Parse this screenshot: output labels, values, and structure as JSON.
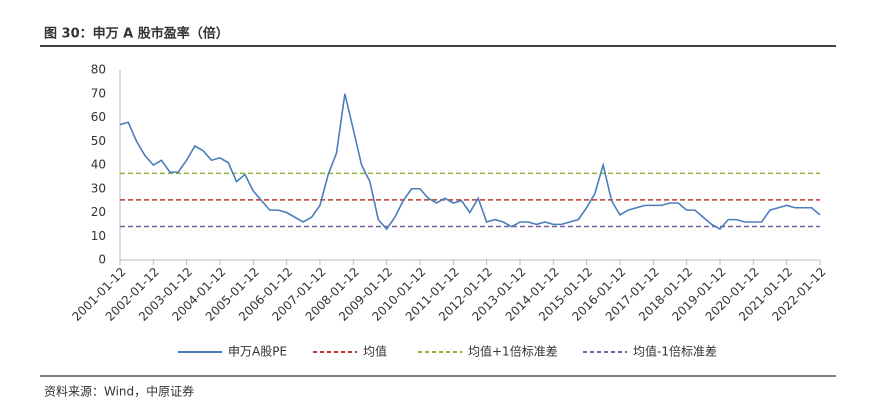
{
  "header": {
    "title": "图 30：申万 A 股市盈率（倍）"
  },
  "source": "资料来源：Wind，中原证券",
  "chart_data": {
    "type": "line",
    "x": [
      "2001-01-12",
      "2001-04-12",
      "2001-07-12",
      "2001-10-12",
      "2002-01-12",
      "2002-04-12",
      "2002-07-12",
      "2002-10-12",
      "2003-01-12",
      "2003-04-12",
      "2003-07-12",
      "2003-10-12",
      "2004-01-12",
      "2004-04-12",
      "2004-07-12",
      "2004-10-12",
      "2005-01-12",
      "2005-04-12",
      "2005-07-12",
      "2005-10-12",
      "2006-01-12",
      "2006-04-12",
      "2006-07-12",
      "2006-10-12",
      "2007-01-12",
      "2007-04-12",
      "2007-07-12",
      "2007-10-12",
      "2008-01-12",
      "2008-04-12",
      "2008-07-12",
      "2008-10-12",
      "2009-01-12",
      "2009-04-12",
      "2009-07-12",
      "2009-10-12",
      "2010-01-12",
      "2010-04-12",
      "2010-07-12",
      "2010-10-12",
      "2011-01-12",
      "2011-04-12",
      "2011-07-12",
      "2011-10-12",
      "2012-01-12",
      "2012-04-12",
      "2012-07-12",
      "2012-10-12",
      "2013-01-12",
      "2013-04-12",
      "2013-07-12",
      "2013-10-12",
      "2014-01-12",
      "2014-04-12",
      "2014-07-12",
      "2014-10-12",
      "2015-01-12",
      "2015-04-12",
      "2015-07-12",
      "2015-10-12",
      "2016-01-12",
      "2016-04-12",
      "2016-07-12",
      "2016-10-12",
      "2017-01-12",
      "2017-04-12",
      "2017-07-12",
      "2017-10-12",
      "2018-01-12",
      "2018-04-12",
      "2018-07-12",
      "2018-10-12",
      "2019-01-12",
      "2019-04-12",
      "2019-07-12",
      "2019-10-12",
      "2020-01-12",
      "2020-04-12",
      "2020-07-12",
      "2020-10-12",
      "2021-01-12",
      "2021-04-12",
      "2021-07-12",
      "2021-10-12",
      "2022-01-12"
    ],
    "series": [
      {
        "name": "申万A股PE",
        "color": "#4a7ebb",
        "values": [
          57,
          58,
          50,
          44,
          40,
          42,
          37,
          37,
          42,
          48,
          46,
          42,
          43,
          41,
          33,
          36,
          29,
          25,
          21,
          21,
          20,
          18,
          16,
          18,
          23,
          36,
          45,
          70,
          55,
          40,
          33,
          17,
          13,
          18,
          25,
          30,
          30,
          26,
          24,
          26,
          24,
          25,
          20,
          26,
          16,
          17,
          16,
          14,
          16,
          16,
          15,
          16,
          15,
          15,
          16,
          17,
          22,
          28,
          40,
          25,
          19,
          21,
          22,
          23,
          23,
          23,
          24,
          24,
          21,
          21,
          18,
          15,
          13,
          17,
          17,
          16,
          16,
          16,
          21,
          22,
          23,
          22,
          22,
          22,
          19
        ]
      }
    ],
    "reference_lines": [
      {
        "name": "均值",
        "value": 25.3,
        "color": "#c0392b"
      },
      {
        "name": "均值+1倍标准差",
        "value": 36.5,
        "color": "#8db33a"
      },
      {
        "name": "均值-1倍标准差",
        "value": 14.1,
        "color": "#7a5fa0"
      }
    ],
    "xlim": [
      "2001-01-12",
      "2022-01-12"
    ],
    "xticks": [
      "2001-01-12",
      "2002-01-12",
      "2003-01-12",
      "2004-01-12",
      "2005-01-12",
      "2006-01-12",
      "2007-01-12",
      "2008-01-12",
      "2009-01-12",
      "2010-01-12",
      "2011-01-12",
      "2012-01-12",
      "2013-01-12",
      "2014-01-12",
      "2015-01-12",
      "2016-01-12",
      "2017-01-12",
      "2018-01-12",
      "2019-01-12",
      "2020-01-12",
      "2021-01-12",
      "2022-01-12"
    ],
    "ylim": [
      0,
      80
    ],
    "yticks": [
      0,
      10,
      20,
      30,
      40,
      50,
      60,
      70,
      80
    ]
  }
}
